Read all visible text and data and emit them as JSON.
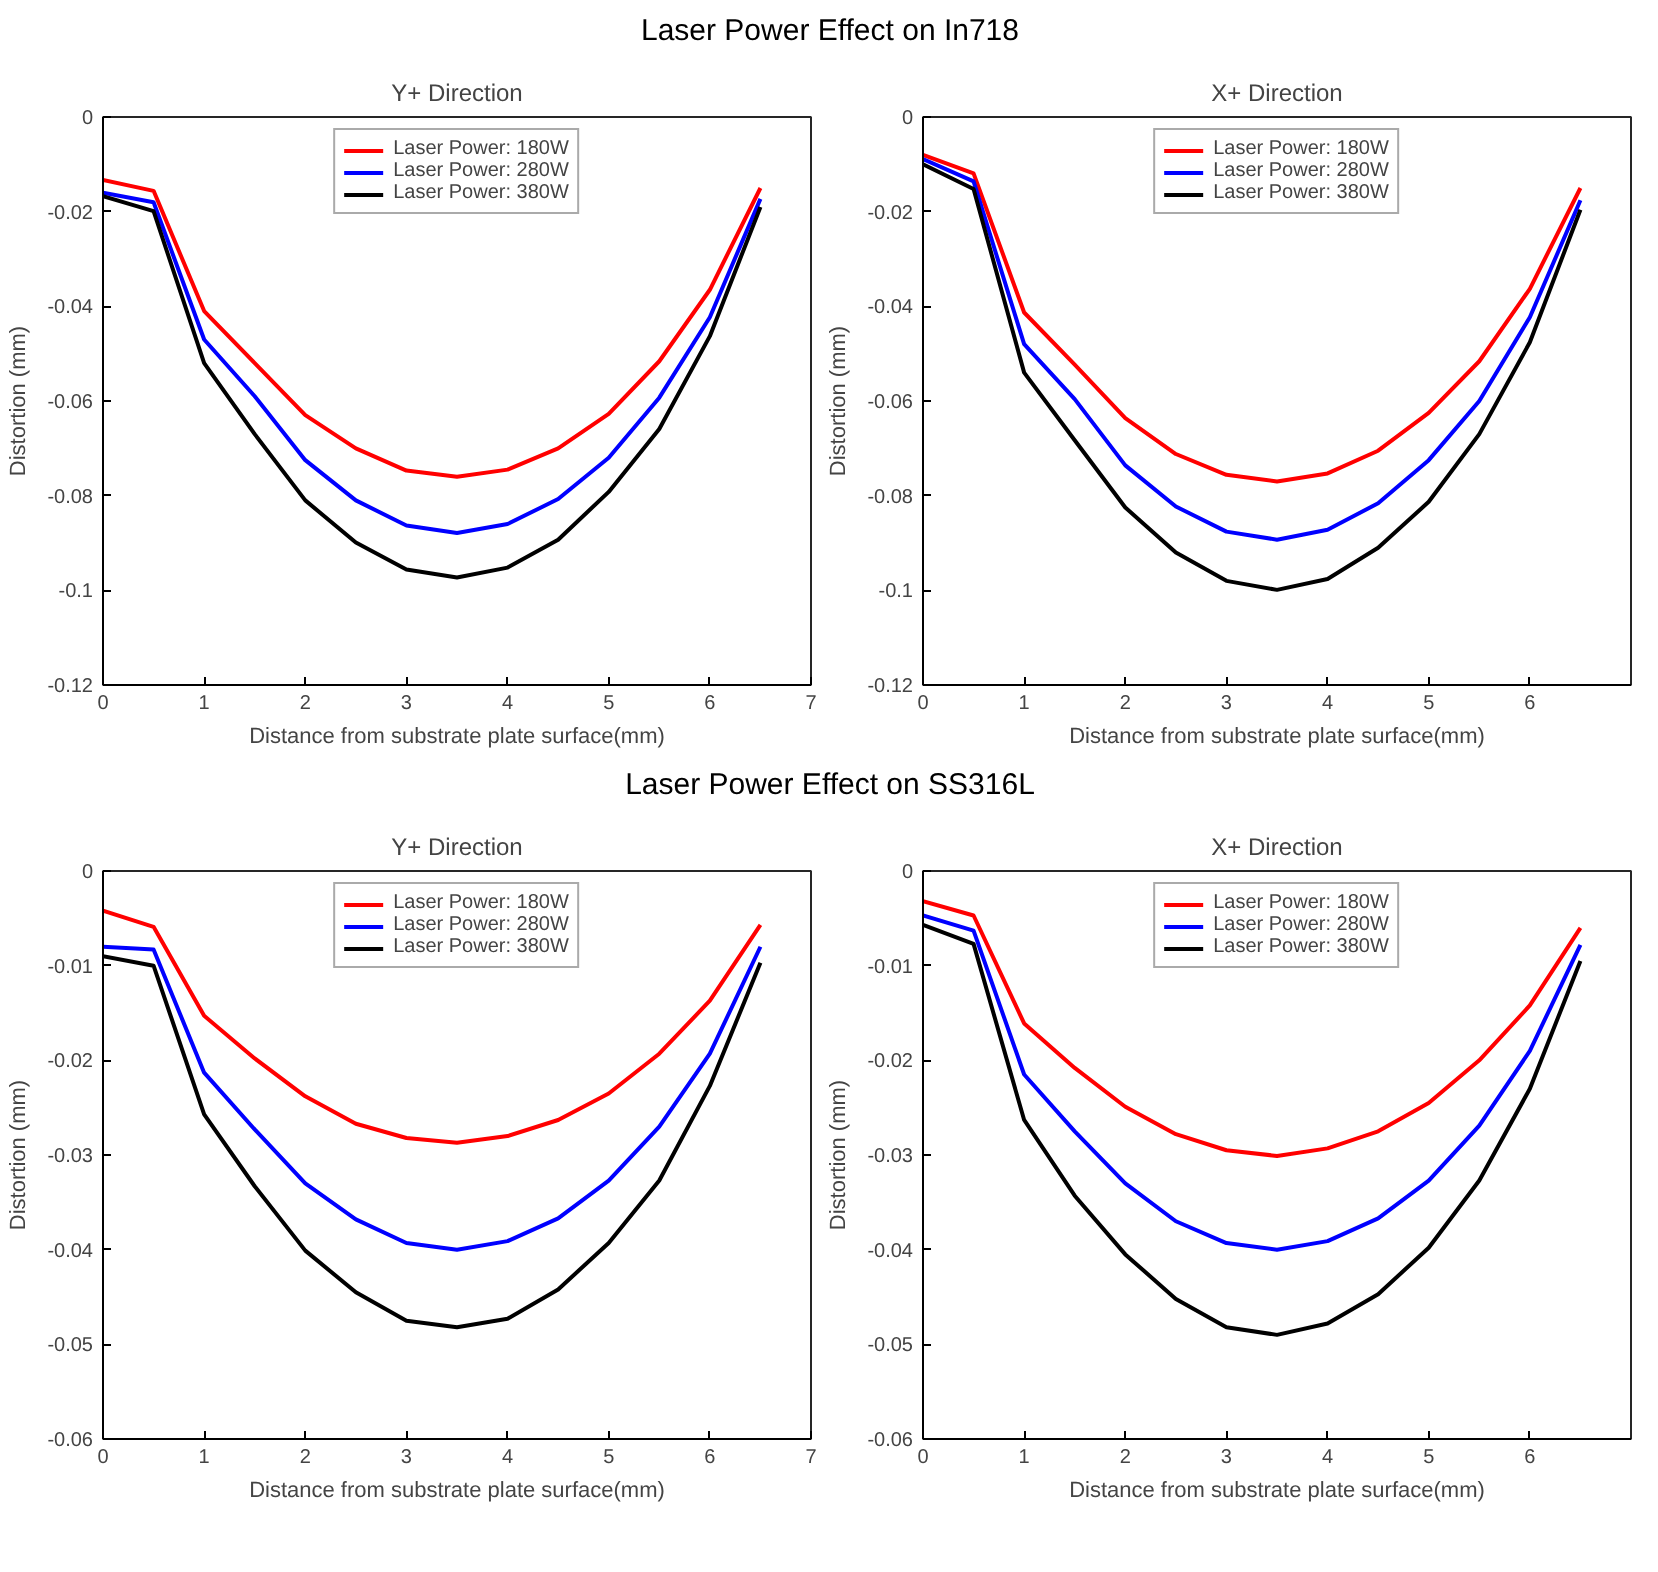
{
  "chart_data": [
    {
      "type": "line",
      "title": "Y+ Direction",
      "annotations": [
        "Laser Power Effect on In718"
      ],
      "xlabel": "Distance from substrate plate surface(mm)",
      "ylabel": "Distortion (mm)",
      "x": [
        0,
        0.5,
        1,
        1.5,
        2,
        2.5,
        3,
        3.5,
        4,
        4.5,
        5,
        5.5,
        6,
        6.5
      ],
      "xlim": [
        0,
        7
      ],
      "xticks": [
        0,
        1,
        2,
        3,
        4,
        5,
        6,
        7
      ],
      "ylim": [
        -0.12,
        0
      ],
      "yticks": [
        -0.12,
        -0.1,
        -0.08,
        -0.06,
        -0.04,
        -0.02,
        0
      ],
      "grid": false,
      "legend": "top",
      "line_style": "solid",
      "series": [
        {
          "name": "Laser Power: 180W",
          "color": "#ff0000",
          "values": [
            -0.0133,
            -0.0156,
            -0.041,
            -0.052,
            -0.063,
            -0.07,
            -0.0747,
            -0.076,
            -0.0745,
            -0.07,
            -0.0627,
            -0.0516,
            -0.0365,
            -0.015
          ]
        },
        {
          "name": "Laser Power: 280W",
          "color": "#0000ff",
          "values": [
            -0.016,
            -0.018,
            -0.047,
            -0.059,
            -0.0725,
            -0.081,
            -0.0863,
            -0.0879,
            -0.086,
            -0.0807,
            -0.072,
            -0.0593,
            -0.0423,
            -0.0173
          ]
        },
        {
          "name": "Laser Power: 380W",
          "color": "#000000",
          "values": [
            -0.0167,
            -0.0199,
            -0.052,
            -0.067,
            -0.081,
            -0.0899,
            -0.0956,
            -0.0973,
            -0.0952,
            -0.0893,
            -0.0792,
            -0.0659,
            -0.0463,
            -0.019
          ]
        }
      ]
    },
    {
      "type": "line",
      "title": "X+ Direction",
      "xlabel": "Distance from substrate plate surface(mm)",
      "ylabel": "Distortion (mm)",
      "x": [
        0,
        0.5,
        1,
        1.5,
        2,
        2.5,
        3,
        3.5,
        4,
        4.5,
        5,
        5.5,
        6,
        6.5
      ],
      "xlim": [
        0,
        7
      ],
      "xticks": [
        0,
        1,
        2,
        3,
        4,
        5,
        6
      ],
      "ylim": [
        -0.12,
        0
      ],
      "yticks": [
        -0.12,
        -0.1,
        -0.08,
        -0.06,
        -0.04,
        -0.02,
        0
      ],
      "grid": false,
      "legend": "top",
      "line_style": "solid",
      "series": [
        {
          "name": "Laser Power: 180W",
          "color": "#ff0000",
          "values": [
            -0.008,
            -0.0119,
            -0.0413,
            -0.0523,
            -0.0636,
            -0.0712,
            -0.0756,
            -0.077,
            -0.0753,
            -0.0705,
            -0.0625,
            -0.0516,
            -0.0363,
            -0.015
          ]
        },
        {
          "name": "Laser Power: 280W",
          "color": "#0000ff",
          "values": [
            -0.0089,
            -0.0136,
            -0.048,
            -0.0596,
            -0.0736,
            -0.0823,
            -0.0876,
            -0.0893,
            -0.0872,
            -0.0816,
            -0.0725,
            -0.06,
            -0.0423,
            -0.0176
          ]
        },
        {
          "name": "Laser Power: 380W",
          "color": "#000000",
          "values": [
            -0.01,
            -0.0152,
            -0.054,
            -0.0683,
            -0.0825,
            -0.092,
            -0.098,
            -0.0999,
            -0.0976,
            -0.091,
            -0.0813,
            -0.067,
            -0.0476,
            -0.0196
          ]
        }
      ]
    },
    {
      "type": "line",
      "title": "Y+ Direction",
      "annotations": [
        "Laser Power Effect on SS316L"
      ],
      "xlabel": "Distance from substrate plate surface(mm)",
      "ylabel": "Distortion (mm)",
      "x": [
        0,
        0.5,
        1,
        1.5,
        2,
        2.5,
        3,
        3.5,
        4,
        4.5,
        5,
        5.5,
        6,
        6.5
      ],
      "xlim": [
        0,
        7
      ],
      "xticks": [
        0,
        1,
        2,
        3,
        4,
        5,
        6,
        7
      ],
      "ylim": [
        -0.06,
        0
      ],
      "yticks": [
        -0.06,
        -0.05,
        -0.04,
        -0.03,
        -0.02,
        -0.01,
        0
      ],
      "grid": false,
      "legend": "top",
      "line_style": "solid",
      "series": [
        {
          "name": "Laser Power: 180W",
          "color": "#ff0000",
          "values": [
            -0.0042,
            -0.0059,
            -0.0153,
            -0.0198,
            -0.0238,
            -0.0267,
            -0.0282,
            -0.0287,
            -0.028,
            -0.0263,
            -0.0235,
            -0.0193,
            -0.0137,
            -0.0057
          ]
        },
        {
          "name": "Laser Power: 280W",
          "color": "#0000ff",
          "values": [
            -0.008,
            -0.0083,
            -0.0213,
            -0.0273,
            -0.033,
            -0.0368,
            -0.0393,
            -0.04,
            -0.0391,
            -0.0367,
            -0.0327,
            -0.027,
            -0.0193,
            -0.008
          ]
        },
        {
          "name": "Laser Power: 380W",
          "color": "#000000",
          "values": [
            -0.009,
            -0.01,
            -0.0257,
            -0.0333,
            -0.0401,
            -0.0445,
            -0.0475,
            -0.0482,
            -0.0473,
            -0.0442,
            -0.0393,
            -0.0327,
            -0.0227,
            -0.0097
          ]
        }
      ]
    },
    {
      "type": "line",
      "title": "X+ Direction",
      "xlabel": "Distance from substrate plate surface(mm)",
      "ylabel": "Distortion (mm)",
      "x": [
        0,
        0.5,
        1,
        1.5,
        2,
        2.5,
        3,
        3.5,
        4,
        4.5,
        5,
        5.5,
        6,
        6.5
      ],
      "xlim": [
        0,
        7
      ],
      "xticks": [
        0,
        1,
        2,
        3,
        4,
        5,
        6
      ],
      "ylim": [
        -0.06,
        0
      ],
      "yticks": [
        -0.06,
        -0.05,
        -0.04,
        -0.03,
        -0.02,
        -0.01,
        0
      ],
      "grid": false,
      "legend": "top",
      "line_style": "solid",
      "series": [
        {
          "name": "Laser Power: 180W",
          "color": "#ff0000",
          "values": [
            -0.0032,
            -0.0047,
            -0.0161,
            -0.0208,
            -0.0249,
            -0.0278,
            -0.0295,
            -0.0301,
            -0.0293,
            -0.0275,
            -0.0245,
            -0.02,
            -0.0142,
            -0.006
          ]
        },
        {
          "name": "Laser Power: 280W",
          "color": "#0000ff",
          "values": [
            -0.0047,
            -0.0063,
            -0.0215,
            -0.0275,
            -0.033,
            -0.037,
            -0.0393,
            -0.04,
            -0.0391,
            -0.0367,
            -0.0327,
            -0.0269,
            -0.019,
            -0.0078
          ]
        },
        {
          "name": "Laser Power: 380W",
          "color": "#000000",
          "values": [
            -0.0057,
            -0.0077,
            -0.0263,
            -0.0343,
            -0.0405,
            -0.0452,
            -0.0482,
            -0.049,
            -0.0478,
            -0.0447,
            -0.0398,
            -0.0327,
            -0.023,
            -0.0095
          ]
        }
      ]
    }
  ]
}
